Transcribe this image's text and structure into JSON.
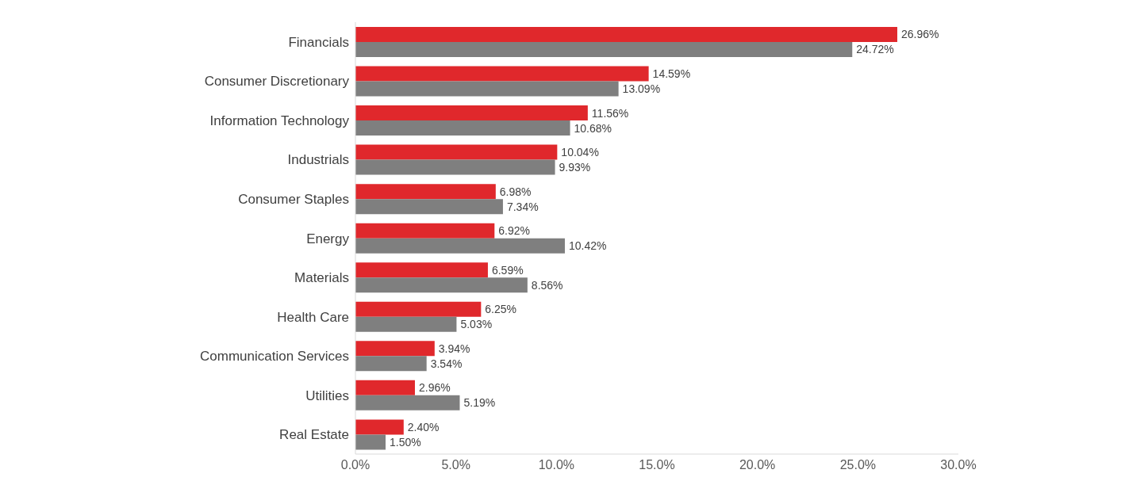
{
  "chart_data": {
    "type": "bar",
    "orientation": "horizontal",
    "categories": [
      "Financials",
      "Consumer Discretionary",
      "Information Technology",
      "Industrials",
      "Consumer Staples",
      "Energy",
      "Materials",
      "Health Care",
      "Communication Services",
      "Utilities",
      "Real Estate"
    ],
    "series": [
      {
        "color": "#e0282c",
        "values": [
          26.96,
          14.59,
          11.56,
          10.04,
          6.98,
          6.92,
          6.59,
          6.25,
          3.94,
          2.96,
          2.4
        ],
        "value_labels": [
          "26.96%",
          "14.59%",
          "11.56%",
          "10.04%",
          "6.98%",
          "6.92%",
          "6.59%",
          "6.25%",
          "3.94%",
          "2.96%",
          "2.40%"
        ]
      },
      {
        "color": "#7f7f7f",
        "values": [
          24.72,
          13.09,
          10.68,
          9.93,
          7.34,
          10.42,
          8.56,
          5.03,
          3.54,
          5.19,
          1.5
        ],
        "value_labels": [
          "24.72%",
          "13.09%",
          "10.68%",
          "9.93%",
          "7.34%",
          "10.42%",
          "8.56%",
          "5.03%",
          "3.54%",
          "5.19%",
          "1.50%"
        ]
      }
    ],
    "xlim": [
      0,
      30
    ],
    "xticks": [
      {
        "value": 0,
        "label": "0.0%"
      },
      {
        "value": 5,
        "label": "5.0%"
      },
      {
        "value": 10,
        "label": "10.0%"
      },
      {
        "value": 15,
        "label": "15.0%"
      },
      {
        "value": 20,
        "label": "20.0%"
      },
      {
        "value": 25,
        "label": "25.0%"
      },
      {
        "value": 30,
        "label": "30.0%"
      }
    ],
    "grid": false,
    "legend": false
  }
}
